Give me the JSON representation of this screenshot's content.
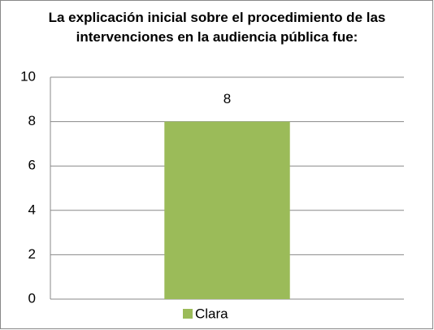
{
  "chart_data": {
    "type": "bar",
    "title": "La explicación inicial sobre el procedimiento de las intervenciones en la audiencia pública fue:",
    "categories": [
      null
    ],
    "series": [
      {
        "name": "Clara",
        "color": "#9bbb59",
        "values": [
          8
        ]
      }
    ],
    "ylim": [
      0,
      10
    ],
    "yticks": [
      0,
      2,
      4,
      6,
      8,
      10
    ],
    "grid": true,
    "legend": "bottom",
    "data_labels": true
  }
}
